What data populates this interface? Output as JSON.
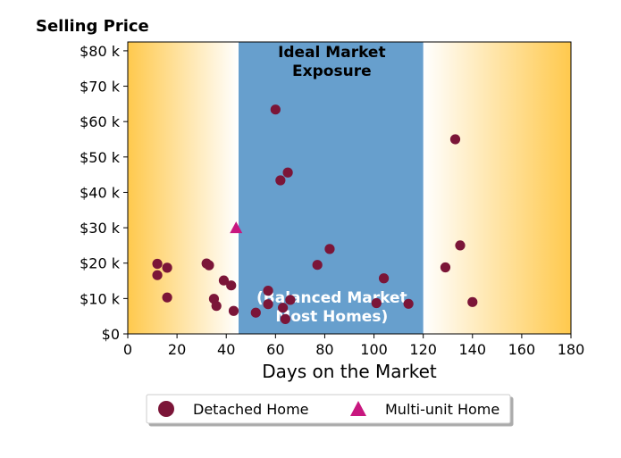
{
  "chart_data": {
    "type": "scatter",
    "title": "Selling Price",
    "xlabel": "Days on the Market",
    "ylabel": "",
    "xlim": [
      0,
      180
    ],
    "ylim": [
      0,
      82500
    ],
    "x_ticks": [
      0,
      20,
      40,
      60,
      80,
      100,
      120,
      140,
      160,
      180
    ],
    "x_tick_labels": [
      "0",
      "20",
      "40",
      "60",
      "80",
      "100",
      "120",
      "140",
      "160",
      "180"
    ],
    "y_ticks": [
      0,
      10000,
      20000,
      30000,
      40000,
      50000,
      60000,
      70000,
      80000
    ],
    "y_tick_labels": [
      "$0",
      "$10 k",
      "$20 k",
      "$30 k",
      "$40 k",
      "$50 k",
      "$60 k",
      "$70 k",
      "$80 k"
    ],
    "grid": false,
    "legend_position": "bottom-center",
    "regions": [
      {
        "x_start": 0,
        "x_end": 45,
        "color": "#ffc94d",
        "fade": "right"
      },
      {
        "x_start": 45,
        "x_end": 120,
        "color": "#679fcd",
        "label_top": "Ideal Market Exposure",
        "label_bottom": "(Balanced Market Most Homes)"
      },
      {
        "x_start": 120,
        "x_end": 180,
        "color": "#ffc94d",
        "fade": "left"
      }
    ],
    "series": [
      {
        "name": "Detached Home",
        "marker": "circle",
        "color": "#7b1538",
        "points": [
          [
            12,
            19800
          ],
          [
            12,
            16600
          ],
          [
            16,
            18700
          ],
          [
            16,
            10300
          ],
          [
            32,
            19900
          ],
          [
            33,
            19400
          ],
          [
            35,
            9900
          ],
          [
            36,
            7900
          ],
          [
            39,
            15100
          ],
          [
            42,
            13700
          ],
          [
            43,
            6500
          ],
          [
            52,
            6000
          ],
          [
            57,
            12200
          ],
          [
            57,
            8400
          ],
          [
            60,
            63400
          ],
          [
            62,
            43400
          ],
          [
            63,
            7400
          ],
          [
            64,
            4200
          ],
          [
            65,
            45600
          ],
          [
            66,
            9600
          ],
          [
            77,
            19500
          ],
          [
            82,
            24000
          ],
          [
            101,
            8700
          ],
          [
            104,
            15700
          ],
          [
            114,
            8500
          ],
          [
            129,
            18800
          ],
          [
            133,
            55000
          ],
          [
            135,
            25000
          ],
          [
            140,
            9000
          ]
        ]
      },
      {
        "name": "Multi-unit Home",
        "marker": "triangle",
        "color": "#c8177f",
        "points": [
          [
            44,
            30000
          ]
        ]
      }
    ]
  }
}
